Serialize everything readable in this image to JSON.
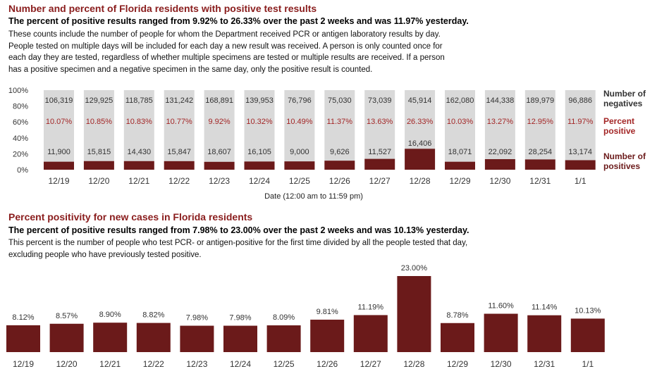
{
  "section1": {
    "title": "Number and percent of Florida residents with positive test results",
    "subtitle": "The percent of positive results ranged from 9.92% to 26.33% over the past 2 weeks and was 11.97% yesterday.",
    "description": [
      "These counts include the number of people for whom the Department received PCR or antigen laboratory results by day.",
      "People tested on multiple days will be included for each day a new result was received. A person is only counted once for",
      "each day they are tested, regardless of whether multiple specimens are tested or multiple results are received. If a person",
      "has a positive specimen and a negative specimen in the same day, only the positive result is counted."
    ],
    "legend": {
      "negatives": [
        "Number of",
        "negatives"
      ],
      "percent": [
        "Percent",
        "positive"
      ],
      "positives": [
        "Number of",
        "positives"
      ]
    }
  },
  "section2": {
    "title": "Percent positivity for new cases in Florida residents",
    "subtitle": "The percent of positive results ranged from 7.98% to 23.00% over the past 2 weeks and was 10.13% yesterday.",
    "description": [
      "This percent is the number of people who test PCR- or antigen-positive for the first time divided by all the people tested that day,",
      "excluding people who have previously tested positive."
    ]
  },
  "colors": {
    "maroon": "#6b1a1a",
    "negative_bar": "#d9d9d9",
    "title_red": "#8a1d1d",
    "percent_red": "#a32626"
  },
  "chart_data": [
    {
      "type": "bar",
      "stacked": true,
      "categories": [
        "12/19",
        "12/20",
        "12/21",
        "12/22",
        "12/23",
        "12/24",
        "12/25",
        "12/26",
        "12/27",
        "12/28",
        "12/29",
        "12/30",
        "12/31",
        "1/1"
      ],
      "series": [
        {
          "name": "Number of negatives",
          "values": [
            "106,319",
            "129,925",
            "118,785",
            "131,242",
            "168,891",
            "139,953",
            "76,796",
            "75,030",
            "73,039",
            "45,914",
            "162,080",
            "144,338",
            "189,979",
            "96,886"
          ]
        },
        {
          "name": "Percent positive",
          "values": [
            "10.07%",
            "10.85%",
            "10.83%",
            "10.77%",
            "9.92%",
            "10.32%",
            "10.49%",
            "11.37%",
            "13.63%",
            "26.33%",
            "10.03%",
            "13.27%",
            "12.95%",
            "11.97%"
          ]
        },
        {
          "name": "Number of positives",
          "values": [
            "11,900",
            "15,815",
            "14,430",
            "15,847",
            "18,607",
            "16,105",
            "9,000",
            "9,626",
            "11,527",
            "16,406",
            "18,071",
            "22,092",
            "28,254",
            "13,174"
          ]
        }
      ],
      "percent_values": [
        10.07,
        10.85,
        10.83,
        10.77,
        9.92,
        10.32,
        10.49,
        11.37,
        13.63,
        26.33,
        10.03,
        13.27,
        12.95,
        11.97
      ],
      "yticks": [
        "100%",
        "80%",
        "60%",
        "40%",
        "20%",
        "0%"
      ],
      "ylim": [
        0,
        100
      ],
      "xlabel": "Date (12:00 am to 11:59 pm)",
      "legend_position": "right"
    },
    {
      "type": "bar",
      "categories": [
        "12/19",
        "12/20",
        "12/21",
        "12/22",
        "12/23",
        "12/24",
        "12/25",
        "12/26",
        "12/27",
        "12/28",
        "12/29",
        "12/30",
        "12/31",
        "1/1"
      ],
      "values": [
        8.12,
        8.57,
        8.9,
        8.82,
        7.98,
        7.98,
        8.09,
        9.81,
        11.19,
        23.0,
        8.78,
        11.6,
        11.14,
        10.13
      ],
      "labels": [
        "8.12%",
        "8.57%",
        "8.90%",
        "8.82%",
        "7.98%",
        "7.98%",
        "8.09%",
        "9.81%",
        "11.19%",
        "23.00%",
        "8.78%",
        "11.60%",
        "11.14%",
        "10.13%"
      ]
    }
  ]
}
